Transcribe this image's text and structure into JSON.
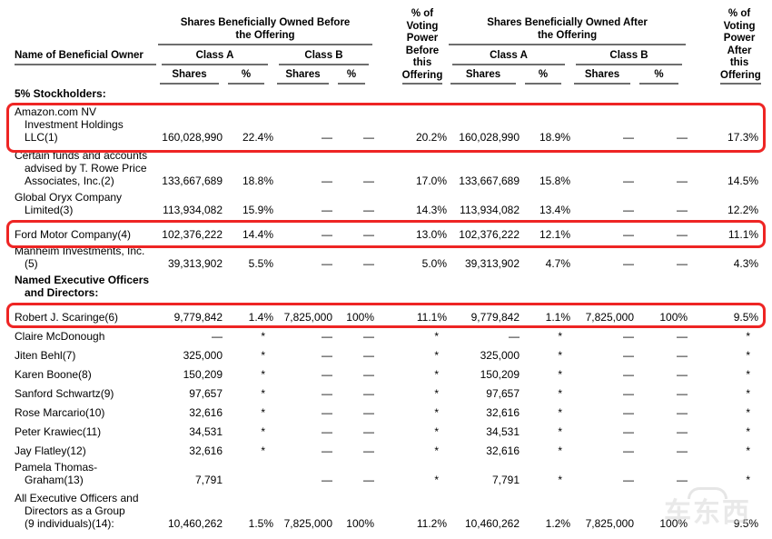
{
  "table": {
    "header": {
      "name_col": "Name of Beneficial Owner",
      "before_group": "Shares Beneficially Owned Before\nthe Offering",
      "after_group": "Shares Beneficially Owned After\nthe Offering",
      "class_a": "Class A",
      "class_b": "Class B",
      "shares_label": "Shares",
      "percent_label": "%",
      "voting_power_before": {
        "lines": "% of\nVoting\nPower\nBefore\nthis",
        "last_line": "Offering"
      },
      "voting_power_after": {
        "lines": "% of\nVoting\nPower\nAfter this",
        "last_line": "Offering"
      }
    },
    "columns": [
      "Before Class A Shares",
      "Before Class A %",
      "Before Class B Shares",
      "Before Class B %",
      "% Voting Power Before Offering",
      "After Class A Shares",
      "After Class A %",
      "After Class B Shares",
      "After Class B %",
      "% Voting Power After Offering"
    ],
    "sections": [
      {
        "label": "5% Stockholders:",
        "rows": [
          {
            "name": "Amazon.com NV\nInvestment Holdings\nLLC(1)",
            "highlighted": true,
            "cells": [
              "160,028,990",
              "22.4%",
              "—",
              "—",
              "20.2%",
              "160,028,990",
              "18.9%",
              "—",
              "—",
              "17.3%"
            ]
          },
          {
            "name": "Certain funds and accounts\nadvised by T. Rowe Price\nAssociates, Inc.(2)",
            "highlighted": false,
            "cells": [
              "133,667,689",
              "18.8%",
              "—",
              "—",
              "17.0%",
              "133,667,689",
              "15.8%",
              "—",
              "—",
              "14.5%"
            ]
          },
          {
            "name": "Global Oryx Company\nLimited(3)",
            "highlighted": false,
            "cells": [
              "113,934,082",
              "15.9%",
              "—",
              "—",
              "14.3%",
              "113,934,082",
              "13.4%",
              "—",
              "—",
              "12.2%"
            ]
          },
          {
            "name": "Ford Motor Company(4)",
            "highlighted": true,
            "cells": [
              "102,376,222",
              "14.4%",
              "—",
              "—",
              "13.0%",
              "102,376,222",
              "12.1%",
              "—",
              "—",
              "11.1%"
            ]
          },
          {
            "name": "Manheim Investments, Inc.\n(5)",
            "highlighted": false,
            "cells": [
              "39,313,902",
              "5.5%",
              "—",
              "—",
              "5.0%",
              "39,313,902",
              "4.7%",
              "—",
              "—",
              "4.3%"
            ]
          }
        ]
      },
      {
        "label": "Named Executive Officers\nand Directors:",
        "rows": [
          {
            "name": "Robert J. Scaringe(6)",
            "highlighted": true,
            "cells": [
              "9,779,842",
              "1.4%",
              "7,825,000",
              "100%",
              "11.1%",
              "9,779,842",
              "1.1%",
              "7,825,000",
              "100%",
              "9.5%"
            ]
          },
          {
            "name": "Claire McDonough",
            "highlighted": false,
            "cells": [
              "—",
              "*",
              "—",
              "—",
              "*",
              "—",
              "*",
              "—",
              "—",
              "*"
            ]
          },
          {
            "name": "Jiten Behl(7)",
            "highlighted": false,
            "cells": [
              "325,000",
              "*",
              "—",
              "—",
              "*",
              "325,000",
              "*",
              "—",
              "—",
              "*"
            ]
          },
          {
            "name": "Karen Boone(8)",
            "highlighted": false,
            "cells": [
              "150,209",
              "*",
              "—",
              "—",
              "*",
              "150,209",
              "*",
              "—",
              "—",
              "*"
            ]
          },
          {
            "name": "Sanford Schwartz(9)",
            "highlighted": false,
            "cells": [
              "97,657",
              "*",
              "—",
              "—",
              "*",
              "97,657",
              "*",
              "—",
              "—",
              "*"
            ]
          },
          {
            "name": "Rose Marcario(10)",
            "highlighted": false,
            "cells": [
              "32,616",
              "*",
              "—",
              "—",
              "*",
              "32,616",
              "*",
              "—",
              "—",
              "*"
            ]
          },
          {
            "name": "Peter Krawiec(11)",
            "highlighted": false,
            "cells": [
              "34,531",
              "*",
              "—",
              "—",
              "*",
              "34,531",
              "*",
              "—",
              "—",
              "*"
            ]
          },
          {
            "name": "Jay Flatley(12)",
            "highlighted": false,
            "cells": [
              "32,616",
              "*",
              "—",
              "—",
              "*",
              "32,616",
              "*",
              "—",
              "—",
              "*"
            ]
          },
          {
            "name": "Pamela Thomas-\nGraham(13)",
            "highlighted": false,
            "cells": [
              "7,791",
              "",
              "—",
              "—",
              "*",
              "7,791",
              "*",
              "—",
              "—",
              "*"
            ]
          },
          {
            "name": "All Executive Officers and\nDirectors as a Group\n(9 individuals)(14):",
            "highlighted": false,
            "cells": [
              "10,460,262",
              "1.5%",
              "7,825,000",
              "100%",
              "11.2%",
              "10,460,262",
              "1.2%",
              "7,825,000",
              "100%",
              "9.5%"
            ]
          }
        ]
      }
    ]
  },
  "annotation": {
    "box_color": "#ee2524"
  },
  "watermark": {
    "text": "车东西"
  }
}
